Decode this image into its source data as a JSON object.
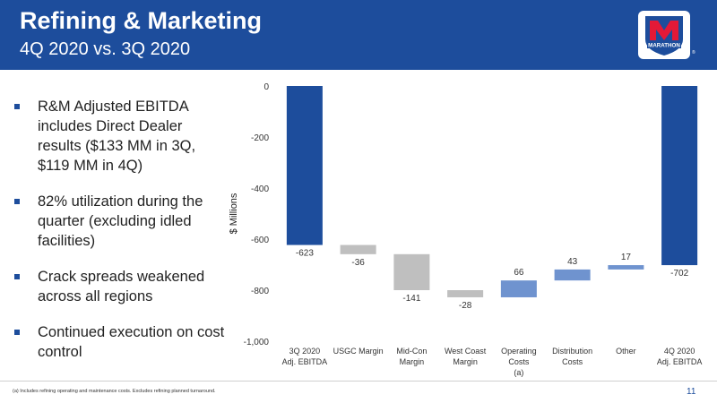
{
  "header": {
    "title": "Refining & Marketing",
    "subtitle": "4Q 2020 vs. 3Q 2020"
  },
  "logo": {
    "text": "MARATHON",
    "trademark": "®",
    "colors": {
      "primary": "#1d4d9c",
      "accent": "#e31937"
    }
  },
  "bullets": [
    "R&M Adjusted EBITDA includes Direct Dealer results ($133 MM in 3Q, $119 MM in 4Q)",
    "82% utilization during the quarter (excluding idled facilities)",
    "Crack spreads weakened across all regions",
    "Continued execution on cost control"
  ],
  "footnote": "(a) Includes refining operating and maintenance costs. Excludes refining planned turnaround.",
  "page_number": "11",
  "colors": {
    "header_bg": "#1d4d9c",
    "total_bar": "#1d4d9c",
    "negative_bar": "#bfbfbf",
    "positive_bar": "#6f93cf"
  },
  "chart_data": {
    "type": "bar",
    "subtype": "waterfall",
    "title": "",
    "ylabel": "$ Millions",
    "ylim": [
      -1000,
      0
    ],
    "yticks": [
      0,
      -200,
      -400,
      -600,
      -800,
      -1000
    ],
    "ytick_labels": [
      "0",
      "-200",
      "-400",
      "-600",
      "-800",
      "-1,000"
    ],
    "categories": [
      [
        "3Q 2020",
        "Adj. EBITDA"
      ],
      [
        "USGC Margin"
      ],
      [
        "Mid-Con",
        "Margin"
      ],
      [
        "West Coast",
        "Margin"
      ],
      [
        "Operating",
        "Costs",
        "(a)"
      ],
      [
        "Distribution",
        "Costs"
      ],
      [
        "Other"
      ],
      [
        "4Q 2020",
        "Adj. EBITDA"
      ]
    ],
    "values": [
      -623,
      -36,
      -141,
      -28,
      66,
      43,
      17,
      -702
    ],
    "bar_kinds": [
      "total",
      "negative",
      "negative",
      "negative",
      "positive",
      "positive",
      "positive",
      "total"
    ],
    "data_labels": [
      "-623",
      "-36",
      "-141",
      "-28",
      "66",
      "43",
      "17",
      "-702"
    ],
    "grid": false,
    "legend": "none"
  }
}
